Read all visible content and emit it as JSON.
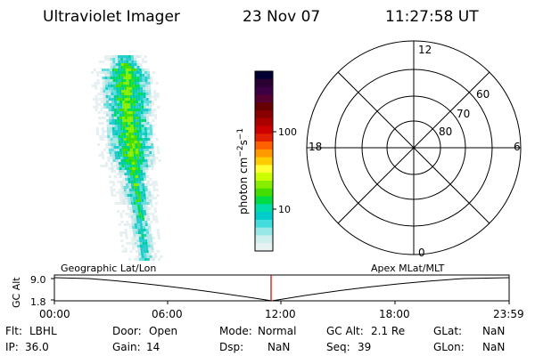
{
  "header": {
    "instrument": "Ultraviolet Imager",
    "date": "23 Nov 07",
    "time": "11:27:58 UT"
  },
  "colorbar": {
    "unit_label": "photon cm",
    "unit_exp1": "−2",
    "unit_s": "s",
    "unit_exp2": "−1",
    "tick_100": "100",
    "tick_10": "10",
    "colors": [
      "#000033",
      "#2a0033",
      "#3b0044",
      "#550033",
      "#660000",
      "#880000",
      "#aa0000",
      "#cc0000",
      "#e02000",
      "#ff6000",
      "#ff9900",
      "#ffcc00",
      "#ffff33",
      "#ccff00",
      "#88ee00",
      "#44dd00",
      "#00dd44",
      "#00ddaa",
      "#00cccc",
      "#44dddd",
      "#99e8e8",
      "#cfeeee",
      "#e8f2f2"
    ]
  },
  "polar": {
    "mlt_top": "12",
    "mlt_left": "18",
    "mlt_right": "6",
    "mlt_bottom": "0",
    "lat_60": "60",
    "lat_70": "70",
    "lat_80": "80"
  },
  "timeline": {
    "left_title": "Geographic Lat/Lon",
    "right_title": "Apex MLat/MLT",
    "axis_label": "GC Alt",
    "y_top": "9.0",
    "y_bottom": "1.8",
    "ticks": [
      "00:00",
      "06:00",
      "12:00",
      "18:00",
      "23:59"
    ],
    "current_time_marker_color": "#cc0000"
  },
  "status": {
    "row1": [
      {
        "label": "Flt:",
        "value": "LBHL"
      },
      {
        "label": "Door:",
        "value": "Open"
      },
      {
        "label": "Mode:",
        "value": "Normal"
      },
      {
        "label": "GC Alt:",
        "value": "2.1 Re"
      },
      {
        "label": "GLat:",
        "value": "NaN"
      }
    ],
    "row2": [
      {
        "label": "IP:",
        "value": "36.0"
      },
      {
        "label": "Gain:",
        "value": "14"
      },
      {
        "label": "Dsp:",
        "value": "NaN"
      },
      {
        "label": "Seq:",
        "value": "39"
      },
      {
        "label": "GLon:",
        "value": "NaN"
      }
    ]
  }
}
